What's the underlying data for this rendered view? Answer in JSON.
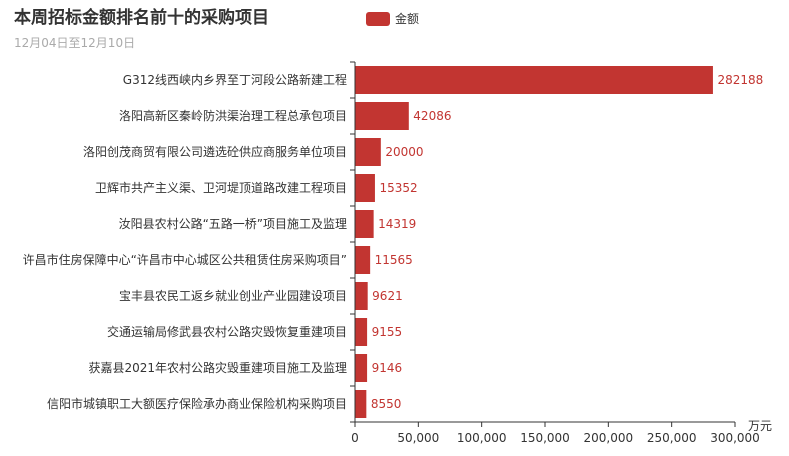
{
  "chart_data": {
    "type": "bar",
    "orientation": "horizontal",
    "title": "本周招标金额排名前十的采购项目",
    "subtitle": "12月04日至12月10日",
    "categories": [
      "G312线西峡内乡界至丁河段公路新建工程",
      "洛阳高新区秦岭防洪渠治理工程总承包项目",
      "洛阳创茂商贸有限公司遴选砼供应商服务单位项目",
      "卫辉市共产主义渠、卫河堤顶道路改建工程项目",
      "汝阳县农村公路“五路一桥”项目施工及监理",
      "许昌市住房保障中心“许昌市中心城区公共租赁住房采购项目”",
      "宝丰县农民工返乡就业创业产业园建设项目",
      "交通运输局修武县农村公路灾毁恢复重建项目",
      "获嘉县2021年农村公路灾毁重建项目施工及监理",
      "信阳市城镇职工大额医疗保险承办商业保险机构采购项目"
    ],
    "series": [
      {
        "name": "金额",
        "values": [
          282188,
          42086,
          20000,
          15352,
          14319,
          11565,
          9621,
          9155,
          9146,
          8550
        ]
      }
    ],
    "xlabel": "万元",
    "xlim": [
      0,
      300000
    ],
    "xticks": [
      "0",
      "50,000",
      "100,000",
      "150,000",
      "200,000",
      "250,000",
      "300,000"
    ],
    "xtick_values": [
      0,
      50000,
      100000,
      150000,
      200000,
      250000,
      300000
    ],
    "grid": false,
    "legend": "top-center",
    "colors": {
      "bar": "#c23531",
      "label": "#c23531",
      "axis": "#333333"
    }
  }
}
